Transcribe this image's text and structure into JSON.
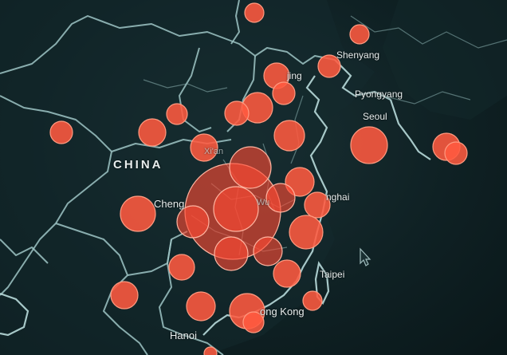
{
  "map": {
    "country_label": "CHINA",
    "cities": [
      {
        "key": "chengdu",
        "label": "Cheng"
      },
      {
        "key": "hanoi",
        "label": "Hanoi"
      },
      {
        "key": "hongkong",
        "label": "ong Kong"
      },
      {
        "key": "taipei",
        "label": "Taipei"
      },
      {
        "key": "shanghai",
        "label": "nghai"
      },
      {
        "key": "beijing",
        "label": "jing"
      },
      {
        "key": "pyongyang",
        "label": "Pyongyang"
      },
      {
        "key": "seoul",
        "label": "Seoul"
      },
      {
        "key": "shenyang",
        "label": "Shenyang"
      },
      {
        "key": "xian",
        "label": "Xi'an"
      },
      {
        "key": "wuhan",
        "label": "Wu"
      }
    ],
    "colors": {
      "background": "#0f2024",
      "bubble": "#ff5a40",
      "border": "#9fc6c6",
      "label": "#e8eeee"
    },
    "icons": [
      "cursor-arrow-icon"
    ]
  }
}
